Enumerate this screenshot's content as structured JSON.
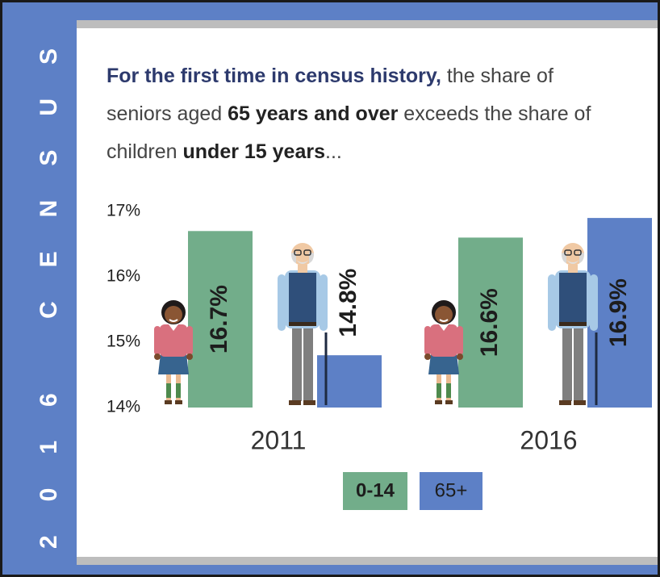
{
  "sidebar_text": "2016 CENSUS",
  "chart_data": {
    "type": "bar",
    "title_lines": [
      [
        {
          "text": "For the first time in census history,",
          "style": "highlight"
        },
        {
          "text": " the share of",
          "style": "normal"
        }
      ],
      [
        {
          "text": "seniors aged ",
          "style": "normal"
        },
        {
          "text": "65 years and over",
          "style": "bold"
        },
        {
          "text": " exceeds the share of",
          "style": "normal"
        }
      ],
      [
        {
          "text": "children ",
          "style": "normal"
        },
        {
          "text": "under 15 years",
          "style": "bold"
        },
        {
          "text": "...",
          "style": "normal"
        }
      ]
    ],
    "categories": [
      "2011",
      "2016"
    ],
    "series": [
      {
        "name": "0-14",
        "color": "#72ad8a",
        "values": [
          16.7,
          16.6
        ],
        "value_labels": [
          "16.7%",
          "16.6%"
        ]
      },
      {
        "name": "65+",
        "color": "#5d80c6",
        "values": [
          14.8,
          16.9
        ],
        "value_labels": [
          "14.8%",
          "16.9%"
        ]
      }
    ],
    "ylim": [
      14,
      17
    ],
    "yticks": [
      {
        "value": 14,
        "label": "14%"
      },
      {
        "value": 15,
        "label": "15%"
      },
      {
        "value": 16,
        "label": "16%"
      },
      {
        "value": 17,
        "label": "17%"
      }
    ],
    "grid": false,
    "legend": "bottom"
  }
}
